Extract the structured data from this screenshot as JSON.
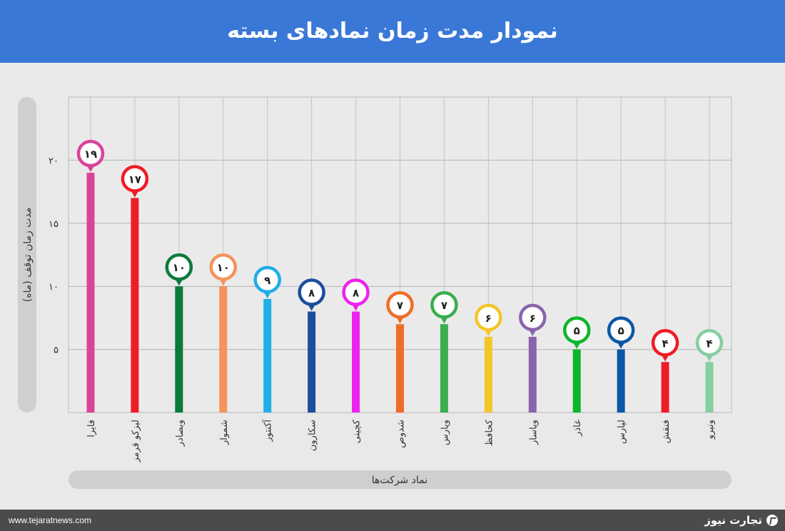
{
  "header": {
    "title": "نمودار مدت زمان نمادهای بسته"
  },
  "footer": {
    "url": "www.tejaratnews.com",
    "brand": "تجارت نیوز",
    "brand_icon": "tejaratnews-logo-icon"
  },
  "chart_data": {
    "type": "bar",
    "title": "نمودار مدت زمان نمادهای بسته",
    "xlabel": "نماد شرکت‌ها",
    "ylabel": "مدت زمان توقف (ماه)",
    "ylim": [
      0,
      25
    ],
    "yticks": [
      5,
      10,
      15,
      20
    ],
    "ytick_labels": [
      "۵",
      "۱۰",
      "۱۵",
      "۲۰"
    ],
    "grid": true,
    "categories": [
      "فایرا",
      "لیزکو قرمز",
      "وبصادر",
      "شموار",
      "آکنتور",
      "سکارون",
      "کچینی",
      "شدوص",
      "وپارس",
      "کحافظ",
      "وپاسار",
      "غاذر",
      "لپارس",
      "فنقش",
      "ونیرو"
    ],
    "values": [
      19,
      17,
      10,
      10,
      9,
      8,
      8,
      7,
      7,
      6,
      6,
      5,
      5,
      4,
      4
    ],
    "value_labels": [
      "۱۹",
      "۱۷",
      "۱۰",
      "۱۰",
      "۹",
      "۸",
      "۸",
      "۷",
      "۷",
      "۶",
      "۶",
      "۵",
      "۵",
      "۴",
      "۴"
    ],
    "colors": [
      "#d9449a",
      "#ee1c25",
      "#0b7a3b",
      "#f5935a",
      "#1eaee8",
      "#1b4f9c",
      "#ee22ee",
      "#ef6d28",
      "#3aae4e",
      "#f3c628",
      "#8a63ad",
      "#0db52b",
      "#0b57a5",
      "#ee1c25",
      "#86cfa0"
    ]
  }
}
